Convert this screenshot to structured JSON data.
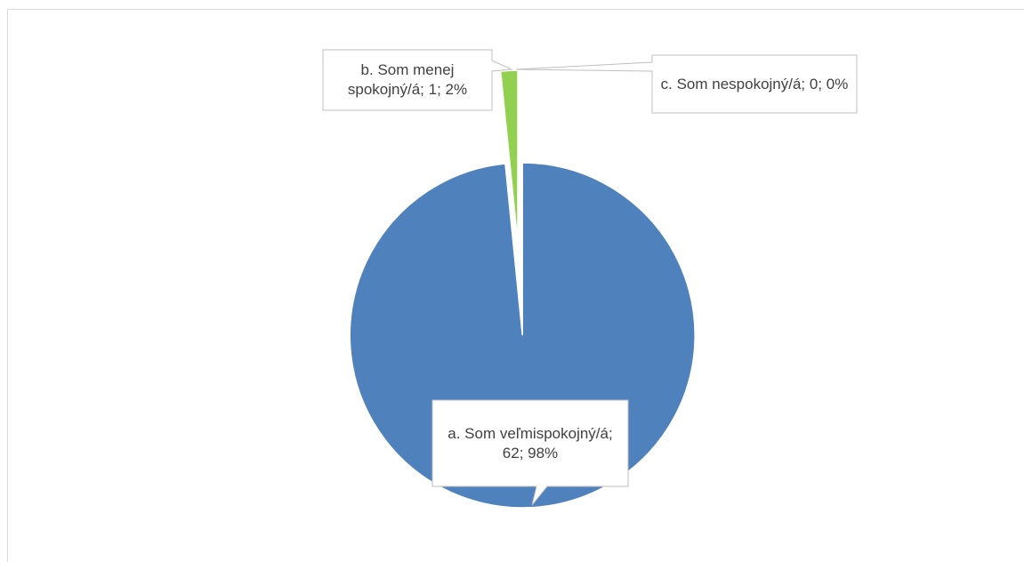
{
  "chart_data": {
    "type": "pie",
    "values": [
      62,
      1,
      0
    ],
    "value_labels": [
      "a. Som veľmispokojný/á; 62; 98%",
      "b. Som menej spokojný/á; 1; 2%",
      "c. Som nespokojný/á; 0; 0%"
    ],
    "colors": [
      "#4f81bd",
      "#92d050",
      "#c0504d"
    ]
  }
}
